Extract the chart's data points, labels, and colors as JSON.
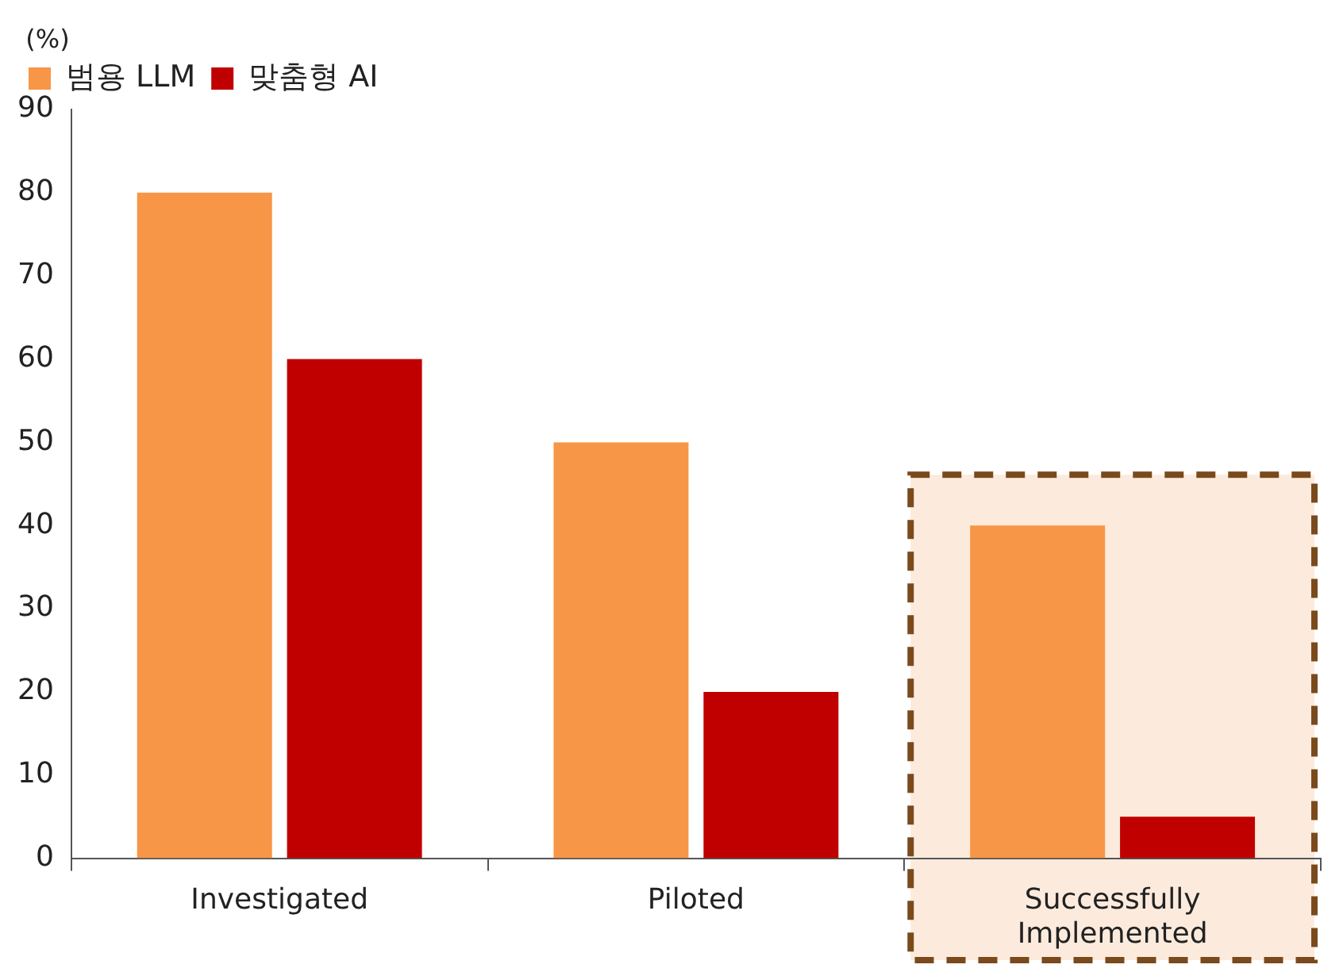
{
  "chart_data": {
    "type": "bar",
    "ylabel": "(%)",
    "categories": [
      "Investigated",
      "Piloted",
      "Successfully Implemented"
    ],
    "series": [
      {
        "name": "범용 LLM",
        "color": "#f79646",
        "values": [
          80,
          50,
          40
        ]
      },
      {
        "name": "맞춤형 AI",
        "color": "#c00000",
        "values": [
          60,
          20,
          5
        ]
      }
    ],
    "ylim": [
      0,
      90
    ],
    "yticks": [
      0,
      10,
      20,
      30,
      40,
      50,
      60,
      70,
      80,
      90
    ],
    "bands": [
      {
        "axis": "x",
        "from": "Successfully Implemented",
        "to": "Successfully Implemented",
        "color": "#fcebdd"
      }
    ],
    "grid": false,
    "legend": "top left"
  }
}
